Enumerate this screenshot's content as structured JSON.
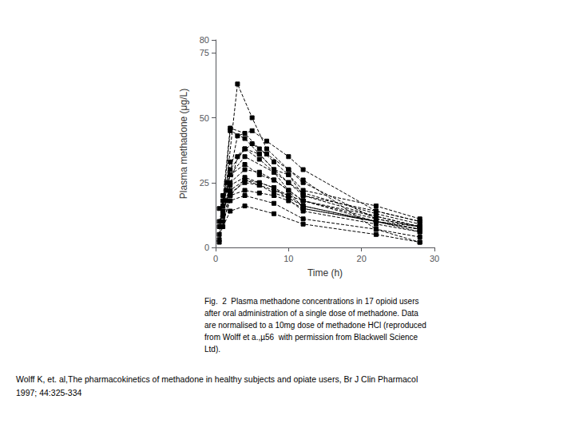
{
  "chart_data": {
    "type": "line",
    "xlabel": "Time (h)",
    "ylabel": "Plasma methadone (μg/L)",
    "xlim": [
      0,
      30
    ],
    "ylim": [
      0,
      80
    ],
    "xticks": [
      0,
      10,
      20,
      30
    ],
    "yticks": [
      0,
      25,
      50,
      75
    ],
    "grid": false,
    "color": "#000000",
    "marker": "square",
    "line_style": "dashed",
    "series": [
      {
        "x": [
          0.5,
          2.0,
          4.0,
          6.0,
          8.0,
          10.0,
          12.0,
          22.0,
          28.0
        ],
        "values": [
          2,
          45,
          42,
          36,
          30,
          28,
          20,
          14,
          10
        ]
      },
      {
        "x": [
          0.5,
          2.0,
          4.0,
          6.0,
          8.0,
          10.0,
          12.0,
          22.0,
          28.0
        ],
        "values": [
          5,
          46,
          44,
          38,
          33,
          28,
          22,
          16,
          11
        ]
      },
      {
        "x": [
          0.5,
          2.0,
          4.0,
          6.0,
          8.0,
          10.0,
          12.0,
          22.0,
          28.0
        ],
        "values": [
          3,
          20,
          26,
          25,
          23,
          20,
          18,
          12,
          8
        ]
      },
      {
        "x": [
          0.5,
          2.0,
          4.0,
          6.0,
          8.0,
          10.0,
          12.0,
          22.0,
          28.0
        ],
        "values": [
          8,
          33,
          38,
          34,
          29,
          25,
          21,
          13,
          9
        ]
      },
      {
        "x": [
          0.5,
          2.0,
          4.0,
          6.0,
          8.0,
          10.0,
          12.0,
          22.0,
          28.0
        ],
        "values": [
          10,
          28,
          32,
          28,
          26,
          22,
          18,
          11,
          8
        ]
      },
      {
        "x": [
          0.5,
          2.0,
          4.0,
          6.0,
          8.0,
          10.0,
          12.0,
          22.0,
          28.0
        ],
        "values": [
          15,
          22,
          26,
          24,
          22,
          20,
          16,
          10,
          7
        ]
      },
      {
        "x": [
          1.0,
          2.0,
          4.0,
          6.0,
          8.0,
          10.0,
          12.0,
          22.0,
          28.0
        ],
        "values": [
          20,
          30,
          38,
          36,
          30,
          25,
          20,
          12,
          8
        ]
      },
      {
        "x": [
          1.0,
          2.0,
          4.0,
          6.0,
          8.0,
          10.0,
          12.0,
          22.0,
          28.0
        ],
        "values": [
          18,
          25,
          30,
          29,
          26,
          22,
          18,
          10,
          7
        ]
      },
      {
        "x": [
          1.0,
          2.0,
          4.0,
          6.0,
          8.0,
          10.0,
          12.0,
          22.0,
          28.0
        ],
        "values": [
          12,
          20,
          22,
          21,
          20,
          18,
          15,
          10,
          7
        ]
      },
      {
        "x": [
          1.0,
          2.0,
          4.0,
          6.0,
          8.0,
          10.0,
          12.0,
          22.0,
          28.0
        ],
        "values": [
          14,
          21,
          25,
          24,
          21,
          19,
          16,
          10,
          6
        ]
      },
      {
        "x": [
          1.5,
          3.0,
          5.0,
          7.0,
          10.0,
          12.0,
          22.0,
          28.0
        ],
        "values": [
          25,
          63,
          50,
          38,
          30,
          26,
          7,
          2
        ]
      },
      {
        "x": [
          1.5,
          3.0,
          5.0,
          7.0,
          10.0,
          12.0,
          22.0,
          28.0
        ],
        "values": [
          22,
          43,
          45,
          41,
          35,
          30,
          14,
          10
        ]
      },
      {
        "x": [
          1.5,
          3.0,
          5.0,
          7.0,
          10.0,
          12.0,
          22.0,
          28.0
        ],
        "values": [
          18,
          35,
          40,
          36,
          30,
          25,
          11,
          8
        ]
      },
      {
        "x": [
          1.0,
          2.0,
          4.0,
          8.0,
          12.0,
          22.0,
          28.0
        ],
        "values": [
          16,
          28,
          35,
          29,
          15,
          10,
          8
        ]
      },
      {
        "x": [
          1.0,
          2.0,
          4.0,
          8.0,
          12.0,
          22.0,
          28.0
        ],
        "values": [
          13,
          24,
          27,
          23,
          14,
          9,
          6
        ]
      },
      {
        "x": [
          1.0,
          2.0,
          4.0,
          8.0,
          12.0,
          22.0,
          28.0
        ],
        "values": [
          10,
          18,
          20,
          17,
          11,
          7,
          4
        ]
      },
      {
        "x": [
          1.0,
          2.0,
          4.0,
          8.0,
          12.0,
          22.0,
          28.0
        ],
        "values": [
          8,
          14,
          16,
          13,
          9,
          5,
          2
        ]
      }
    ],
    "caption": [
      "Fig.  2  Plasma methadone concentrations in 17 opioid users",
      "after oral administration of a single dose of methadone. Data",
      "are normalised to a 10mg dose of methadone HCl (reproduced",
      "from Wolff et a.,µ56  with permission from Blackwell Science",
      "Ltd)."
    ],
    "citation": [
      "Wolff K, et. al,The pharmacokinetics of methadone in healthy subjects and opiate users, Br J Clin Pharmacol",
      "1997; 44:325-334"
    ]
  }
}
